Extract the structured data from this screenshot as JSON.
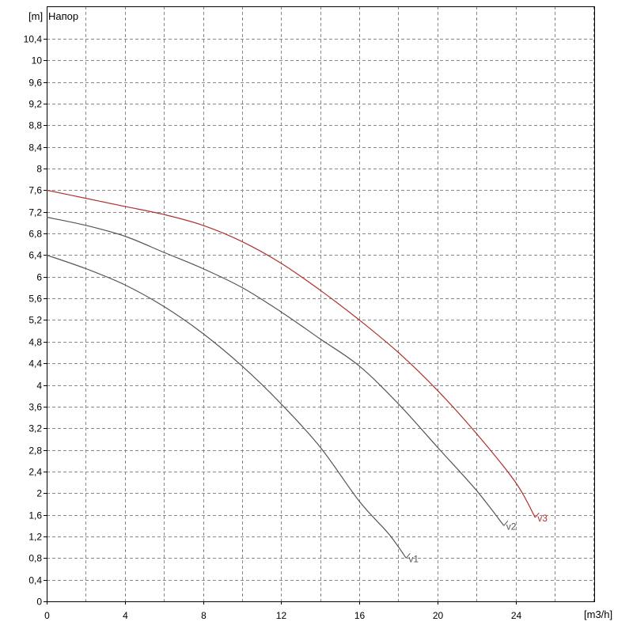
{
  "chart_data": {
    "type": "line",
    "title": "Напор",
    "ylabel": "[m]",
    "xlabel": "[m3/h]",
    "xlim": [
      0,
      28.5
    ],
    "ylim": [
      0,
      10.8
    ],
    "x_ticks": [
      0,
      4,
      8,
      12,
      16,
      20,
      24
    ],
    "x_tick_labels": [
      "0",
      "4",
      "8",
      "12",
      "16",
      "20",
      "24"
    ],
    "x_grid": [
      0,
      2,
      4,
      6,
      8,
      10,
      12,
      14,
      16,
      18,
      20,
      22,
      24,
      26,
      28
    ],
    "y_ticks": [
      0,
      0.4,
      0.8,
      1.2,
      1.6,
      2,
      2.4,
      2.8,
      3.2,
      3.6,
      4,
      4.4,
      4.8,
      5.2,
      5.6,
      6,
      6.4,
      6.8,
      7.2,
      7.6,
      8,
      8.4,
      8.8,
      9.2,
      9.6,
      10,
      10.4
    ],
    "y_tick_labels": [
      "0",
      "0,4",
      "0,8",
      "1,2",
      "1,6",
      "2",
      "2,4",
      "2,8",
      "3,2",
      "3,6",
      "4",
      "4,4",
      "4,8",
      "5,2",
      "5,6",
      "6",
      "6,4",
      "6,8",
      "7,2",
      "7,6",
      "8",
      "8,4",
      "8,8",
      "9,2",
      "9,6",
      "10",
      "10,4"
    ],
    "grid": true,
    "series": [
      {
        "name": "v1",
        "color": "#555555",
        "x": [
          0,
          2,
          4,
          6,
          8,
          10,
          12,
          14,
          16,
          17.5,
          18.4
        ],
        "y": [
          6.4,
          6.15,
          5.85,
          5.45,
          4.95,
          4.35,
          3.65,
          2.85,
          1.85,
          1.25,
          0.8
        ]
      },
      {
        "name": "v2",
        "color": "#555555",
        "x": [
          0,
          2,
          4,
          6,
          8,
          10,
          12,
          14,
          16,
          18,
          20,
          22,
          23.4
        ],
        "y": [
          7.1,
          6.95,
          6.75,
          6.45,
          6.15,
          5.8,
          5.35,
          4.85,
          4.35,
          3.65,
          2.85,
          2.05,
          1.4
        ]
      },
      {
        "name": "v3",
        "color": "#b03030",
        "x": [
          0,
          2,
          4,
          6,
          8,
          10,
          12,
          14,
          16,
          18,
          20,
          22,
          24,
          25
        ],
        "y": [
          7.6,
          7.45,
          7.3,
          7.15,
          6.95,
          6.65,
          6.25,
          5.75,
          5.2,
          4.6,
          3.9,
          3.1,
          2.2,
          1.55
        ]
      }
    ]
  }
}
